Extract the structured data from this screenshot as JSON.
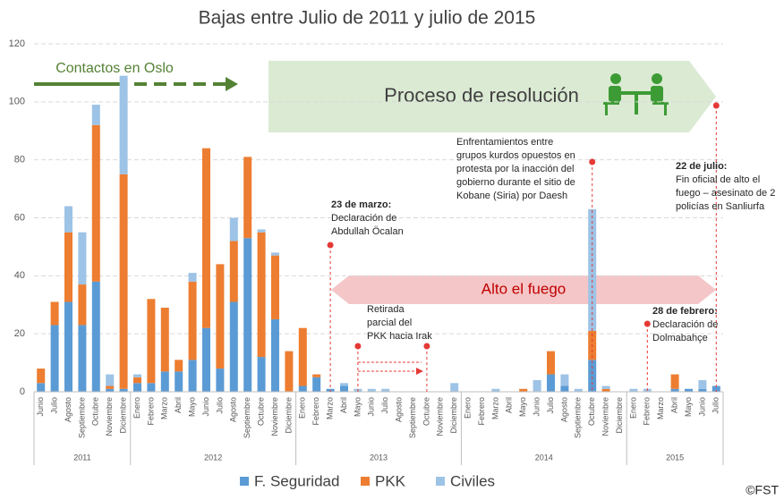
{
  "chart_data": {
    "type": "bar",
    "stacked": true,
    "title": "Bajas entre Julio de 2011 y julio de 2015",
    "categories": [
      "Junio",
      "Julio",
      "Agosto",
      "Septiembre",
      "Octubre",
      "Noviembre",
      "Diciembre",
      "Enero",
      "Febrero",
      "Marzo",
      "Abril",
      "Mayo",
      "Junio",
      "Julio",
      "Agosto",
      "Septiembre",
      "Octubre",
      "Noviembre",
      "Diciembre",
      "Enero",
      "Febrero",
      "Marzo",
      "Abril",
      "Mayo",
      "Junio",
      "Julio",
      "Agosto",
      "Septiembre",
      "Octubre",
      "Noviembre",
      "Diciembre",
      "Enero",
      "Febrero",
      "Marzo",
      "Abril",
      "Mayo",
      "Junio",
      "Julio",
      "Agosto",
      "Septiembre",
      "Octubre",
      "Noviembre",
      "Diciembre",
      "Enero",
      "Febrero",
      "Marzo",
      "Abril",
      "Mayo",
      "Junio",
      "Julio"
    ],
    "years": [
      "2011",
      "2012",
      "2013",
      "2014",
      "2015"
    ],
    "series": [
      {
        "name": "F. Seguridad",
        "color": "#5b9bd5",
        "values": [
          3,
          23,
          31,
          23,
          38,
          1,
          1,
          3,
          3,
          7,
          7,
          11,
          22,
          8,
          31,
          53,
          12,
          25,
          0,
          2,
          5,
          1,
          2,
          0,
          0,
          0,
          0,
          0,
          0,
          0,
          0,
          0,
          0,
          0,
          0,
          0,
          0,
          6,
          2,
          0,
          11,
          0,
          0,
          0,
          0,
          0,
          1,
          1,
          1,
          2
        ]
      },
      {
        "name": "PKK",
        "color": "#ed7d31",
        "values": [
          5,
          8,
          24,
          14,
          54,
          1,
          74,
          2,
          29,
          22,
          4,
          27,
          62,
          36,
          21,
          28,
          43,
          22,
          14,
          20,
          1,
          0,
          0,
          0,
          0,
          0,
          0,
          0,
          0,
          0,
          0,
          0,
          0,
          0,
          0,
          1,
          0,
          8,
          0,
          0,
          10,
          1,
          0,
          0,
          0,
          0,
          5,
          0,
          0,
          0
        ]
      },
      {
        "name": "Civiles",
        "color": "#9dc3e6",
        "values": [
          0,
          0,
          9,
          18,
          7,
          4,
          34,
          1,
          0,
          0,
          0,
          3,
          0,
          0,
          8,
          0,
          1,
          1,
          0,
          0,
          0,
          0,
          1,
          1,
          1,
          1,
          0,
          0,
          0,
          0,
          3,
          0,
          0,
          1,
          0,
          0,
          4,
          0,
          4,
          1,
          42,
          1,
          0,
          1,
          1,
          0,
          0,
          0,
          3,
          0
        ]
      }
    ],
    "ylim": [
      0,
      120
    ],
    "yticks": [
      0,
      20,
      40,
      60,
      80,
      100,
      120
    ],
    "grid": true,
    "periods": [
      "Contactos en Oslo",
      "Proceso de resolución",
      "Alto el fuego"
    ],
    "annotations": [
      {
        "heading": "23 de marzo:",
        "text": [
          "Declaración de",
          "Abdullah Öcalan"
        ]
      },
      {
        "text": [
          "Retirada",
          "parcial del",
          "PKK hacia Irak"
        ]
      },
      {
        "text": [
          "Enfrentamientos entre",
          "grupos kurdos opuestos en",
          "protesta por la inacción del",
          "gobierno durante el sitio de",
          "Kobane (Siria) por Daesh"
        ]
      },
      {
        "heading": "28 de febrero:",
        "text": [
          "Declaración de",
          "Dolmabahçe"
        ]
      },
      {
        "heading": "22 de julio:",
        "text": [
          "Fin oficial de alto el",
          "fuego – asesinato de 2",
          "policías en Sanliurfa"
        ]
      }
    ],
    "credit": "©FST"
  }
}
